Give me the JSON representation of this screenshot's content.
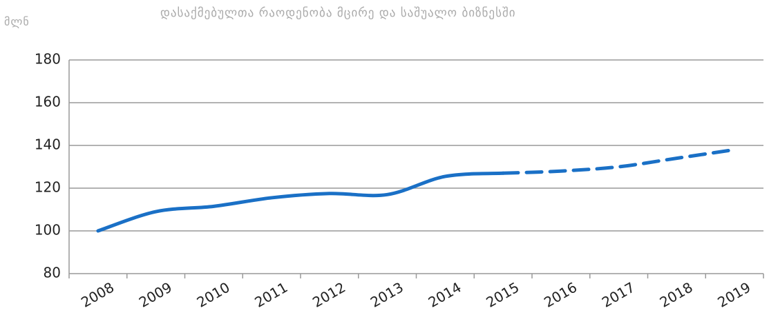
{
  "chart_data": {
    "type": "line",
    "title": "დასაქმებულთა რაოდენობა მცირე და საშუალო ბიზნესში",
    "y_label": "მლნ",
    "categories": [
      "2008",
      "2009",
      "2010",
      "2011",
      "2012",
      "2013",
      "2014",
      "2015",
      "2016",
      "2017",
      "2018",
      "2019"
    ],
    "series": [
      {
        "color": "#1a70c6",
        "dashed": false,
        "values": [
          100,
          109,
          111.5,
          115.5,
          117.5,
          117,
          125.5,
          127,
          null,
          null,
          null,
          null
        ]
      },
      {
        "color": "#1a70c6",
        "dashed": true,
        "values": [
          null,
          null,
          null,
          null,
          null,
          null,
          null,
          127,
          128,
          130,
          134,
          138
        ]
      }
    ],
    "ylim": [
      80,
      180
    ],
    "yticks": [
      80,
      100,
      120,
      140,
      160,
      180
    ],
    "grid": true
  }
}
